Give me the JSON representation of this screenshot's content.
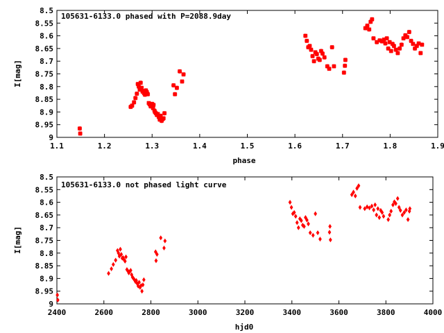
{
  "chart_data": [
    {
      "type": "scatter",
      "title": "105631-6133.0 phased with P=2088.9day",
      "xlabel": "phase",
      "ylabel": "I[mag]",
      "xlim": [
        1.1,
        1.9
      ],
      "ylim": [
        9,
        8.5
      ],
      "y_inverted": true,
      "xticks": [
        "1.1",
        "1.2",
        "1.3",
        "1.4",
        "1.5",
        "1.6",
        "1.7",
        "1.8",
        "1.9"
      ],
      "yticks": [
        "8.5",
        "8.55",
        "8.6",
        "8.65",
        "8.7",
        "8.75",
        "8.8",
        "8.85",
        "8.9",
        "8.95",
        "9"
      ],
      "marker": "cross-bold",
      "color": "#ff0000",
      "grid": false,
      "series": [
        {
          "x": [
            1.148,
            1.149,
            1.255,
            1.258,
            1.262,
            1.265,
            1.268,
            1.27,
            1.272,
            1.274,
            1.276,
            1.278,
            1.28,
            1.281,
            1.283,
            1.285,
            1.287,
            1.289,
            1.291,
            1.293,
            1.295,
            1.297,
            1.299,
            1.3,
            1.302,
            1.303,
            1.305,
            1.306,
            1.308,
            1.31,
            1.312,
            1.314,
            1.316,
            1.318,
            1.32,
            1.322,
            1.324,
            1.326,
            1.345,
            1.348,
            1.352,
            1.358,
            1.363,
            1.366,
            1.622,
            1.625,
            1.628,
            1.631,
            1.634,
            1.637,
            1.64,
            1.643,
            1.646,
            1.649,
            1.652,
            1.655,
            1.658,
            1.662,
            1.668,
            1.672,
            1.678,
            1.682,
            1.703,
            1.705,
            1.706,
            1.748,
            1.752,
            1.756,
            1.759,
            1.762,
            1.765,
            1.772,
            1.778,
            1.783,
            1.787,
            1.79,
            1.793,
            1.796,
            1.799,
            1.802,
            1.805,
            1.808,
            1.812,
            1.816,
            1.82,
            1.824,
            1.828,
            1.832,
            1.836,
            1.84,
            1.844,
            1.848,
            1.852,
            1.856,
            1.86,
            1.864,
            1.867
          ],
          "y": [
            8.965,
            8.985,
            8.88,
            8.875,
            8.862,
            8.845,
            8.828,
            8.79,
            8.8,
            8.812,
            8.785,
            8.805,
            8.82,
            8.818,
            8.826,
            8.832,
            8.815,
            8.822,
            8.83,
            8.865,
            8.87,
            8.878,
            8.873,
            8.868,
            8.885,
            8.872,
            8.895,
            8.9,
            8.905,
            8.912,
            8.908,
            8.92,
            8.93,
            8.915,
            8.935,
            8.928,
            8.925,
            8.905,
            8.795,
            8.83,
            8.805,
            8.74,
            8.78,
            8.752,
            8.6,
            8.62,
            8.645,
            8.64,
            8.655,
            8.68,
            8.7,
            8.665,
            8.672,
            8.69,
            8.695,
            8.66,
            8.67,
            8.685,
            8.72,
            8.73,
            8.645,
            8.72,
            8.745,
            8.718,
            8.695,
            8.57,
            8.56,
            8.575,
            8.545,
            8.535,
            8.61,
            8.625,
            8.618,
            8.622,
            8.615,
            8.63,
            8.61,
            8.65,
            8.625,
            8.66,
            8.632,
            8.64,
            8.655,
            8.668,
            8.65,
            8.635,
            8.61,
            8.598,
            8.605,
            8.585,
            8.62,
            8.632,
            8.65,
            8.64,
            8.63,
            8.668,
            8.635
          ]
        }
      ]
    },
    {
      "type": "scatter",
      "title": "105631-6133.0 not phased light curve",
      "xlabel": "hjd0",
      "ylabel": "I[mag]",
      "xlim": [
        2400,
        4000
      ],
      "ylim": [
        9,
        8.5
      ],
      "y_inverted": true,
      "xticks": [
        "2400",
        "2600",
        "2800",
        "3000",
        "3200",
        "3400",
        "3600",
        "3800",
        "4000"
      ],
      "yticks": [
        "8.5",
        "8.55",
        "8.6",
        "8.65",
        "8.7",
        "8.75",
        "8.8",
        "8.85",
        "8.9",
        "8.95",
        "9"
      ],
      "marker": "diamond",
      "color": "#ff0000",
      "grid": false,
      "series": [
        {
          "x": [
            2402,
            2404,
            2620,
            2632,
            2640,
            2650,
            2658,
            2662,
            2666,
            2670,
            2674,
            2678,
            2682,
            2686,
            2690,
            2694,
            2698,
            2702,
            2706,
            2710,
            2714,
            2718,
            2722,
            2726,
            2730,
            2734,
            2738,
            2742,
            2746,
            2750,
            2754,
            2758,
            2762,
            2766,
            2770,
            2820,
            2822,
            2826,
            2842,
            2856,
            2860,
            3392,
            3398,
            3404,
            3410,
            3416,
            3422,
            3428,
            3434,
            3440,
            3446,
            3452,
            3458,
            3464,
            3470,
            3478,
            3490,
            3500,
            3510,
            3520,
            3560,
            3562,
            3564,
            3655,
            3662,
            3670,
            3677,
            3684,
            3690,
            3710,
            3720,
            3730,
            3740,
            3748,
            3754,
            3760,
            3766,
            3772,
            3778,
            3784,
            3790,
            3810,
            3816,
            3822,
            3830,
            3836,
            3842,
            3850,
            3856,
            3862,
            3870,
            3878,
            3886,
            3894,
            3900,
            3902
          ],
          "y": [
            8.965,
            8.985,
            8.88,
            8.862,
            8.845,
            8.828,
            8.79,
            8.8,
            8.812,
            8.785,
            8.805,
            8.82,
            8.818,
            8.826,
            8.832,
            8.815,
            8.865,
            8.87,
            8.878,
            8.873,
            8.868,
            8.885,
            8.895,
            8.9,
            8.905,
            8.912,
            8.908,
            8.92,
            8.93,
            8.915,
            8.935,
            8.928,
            8.95,
            8.925,
            8.905,
            8.795,
            8.83,
            8.805,
            8.74,
            8.78,
            8.752,
            8.6,
            8.62,
            8.645,
            8.64,
            8.655,
            8.68,
            8.7,
            8.665,
            8.672,
            8.69,
            8.695,
            8.66,
            8.67,
            8.685,
            8.72,
            8.73,
            8.645,
            8.72,
            8.745,
            8.718,
            8.695,
            8.748,
            8.57,
            8.56,
            8.575,
            8.545,
            8.535,
            8.62,
            8.625,
            8.618,
            8.622,
            8.615,
            8.63,
            8.61,
            8.65,
            8.625,
            8.66,
            8.632,
            8.64,
            8.655,
            8.668,
            8.65,
            8.635,
            8.61,
            8.598,
            8.605,
            8.585,
            8.62,
            8.632,
            8.65,
            8.64,
            8.63,
            8.668,
            8.635,
            8.625
          ]
        }
      ]
    }
  ]
}
